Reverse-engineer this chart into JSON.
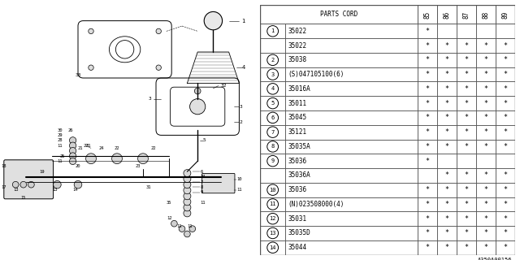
{
  "bg_color": "#ffffff",
  "header_years": [
    "85",
    "86",
    "87",
    "88",
    "89"
  ],
  "rows": [
    {
      "num": "1",
      "circled": true,
      "part": "35022",
      "marks": [
        true,
        false,
        false,
        false,
        false
      ]
    },
    {
      "num": "",
      "circled": false,
      "part": "35022",
      "marks": [
        true,
        true,
        true,
        true,
        true
      ]
    },
    {
      "num": "2",
      "circled": true,
      "part": "35038",
      "marks": [
        true,
        true,
        true,
        true,
        true
      ]
    },
    {
      "num": "3",
      "circled": true,
      "part": "(S)047105100(6)",
      "marks": [
        true,
        true,
        true,
        true,
        true
      ]
    },
    {
      "num": "4",
      "circled": true,
      "part": "35016A",
      "marks": [
        true,
        true,
        true,
        true,
        true
      ]
    },
    {
      "num": "5",
      "circled": true,
      "part": "35011",
      "marks": [
        true,
        true,
        true,
        true,
        true
      ]
    },
    {
      "num": "6",
      "circled": true,
      "part": "35045",
      "marks": [
        true,
        true,
        true,
        true,
        true
      ]
    },
    {
      "num": "7",
      "circled": true,
      "part": "35121",
      "marks": [
        true,
        true,
        true,
        true,
        true
      ]
    },
    {
      "num": "8",
      "circled": true,
      "part": "35035A",
      "marks": [
        true,
        true,
        true,
        true,
        true
      ]
    },
    {
      "num": "9",
      "circled": true,
      "part": "35036",
      "marks": [
        true,
        false,
        false,
        false,
        false
      ]
    },
    {
      "num": "",
      "circled": false,
      "part": "35036A",
      "marks": [
        false,
        true,
        true,
        true,
        true
      ]
    },
    {
      "num": "10",
      "circled": true,
      "part": "35036",
      "marks": [
        true,
        true,
        true,
        true,
        true
      ]
    },
    {
      "num": "11",
      "circled": true,
      "part": "(N)023508000(4)",
      "marks": [
        true,
        true,
        true,
        true,
        true
      ]
    },
    {
      "num": "12",
      "circled": true,
      "part": "35031",
      "marks": [
        true,
        true,
        true,
        true,
        true
      ]
    },
    {
      "num": "13",
      "circled": true,
      "part": "35035D",
      "marks": [
        true,
        true,
        true,
        true,
        true
      ]
    },
    {
      "num": "14",
      "circled": true,
      "part": "35044",
      "marks": [
        true,
        true,
        true,
        true,
        true
      ]
    }
  ],
  "diagram_label": "A350A00156",
  "lc": "#000000",
  "tc": "#000000",
  "gc": "#555555"
}
